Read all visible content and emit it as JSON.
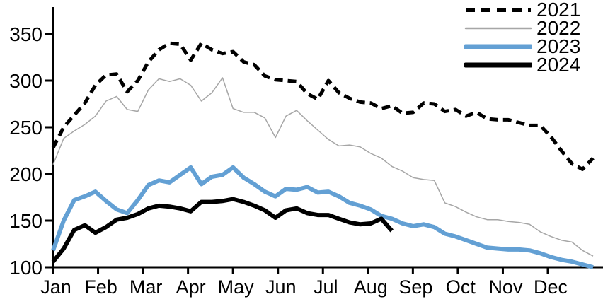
{
  "chart_data": {
    "type": "line",
    "title": "",
    "xlabel": "",
    "ylabel": "",
    "x_description": "weekly observations across one calendar year (index 0-51)",
    "x_tick_labels": [
      "Jan",
      "Feb",
      "Mar",
      "Apr",
      "May",
      "Jun",
      "Jul",
      "Aug",
      "Sep",
      "Oct",
      "Nov",
      "Dec"
    ],
    "y_ticks": [
      100,
      150,
      200,
      250,
      300,
      350
    ],
    "ylim": [
      100,
      380
    ],
    "grid": false,
    "legend_position": "top-right",
    "axis_color": "#000000",
    "series": [
      {
        "name": "2021",
        "style": "dashed",
        "color": "#000000",
        "width": 5,
        "values": [
          228,
          250,
          263,
          276,
          295,
          306,
          307,
          288,
          300,
          320,
          333,
          340,
          339,
          322,
          340,
          333,
          329,
          331,
          320,
          317,
          305,
          301,
          300,
          299,
          286,
          280,
          300,
          287,
          281,
          277,
          276,
          270,
          273,
          265,
          266,
          276,
          275,
          267,
          269,
          262,
          266,
          259,
          258,
          258,
          255,
          252,
          252,
          240,
          225,
          211,
          205,
          217
        ]
      },
      {
        "name": "2022",
        "style": "solid",
        "color": "#A6A6A6",
        "width": 1.5,
        "values": [
          210,
          238,
          246,
          253,
          262,
          278,
          283,
          269,
          267,
          290,
          302,
          299,
          302,
          295,
          278,
          287,
          303,
          270,
          266,
          266,
          260,
          239,
          262,
          268,
          257,
          247,
          237,
          230,
          231,
          229,
          222,
          217,
          208,
          203,
          196,
          194,
          193,
          169,
          165,
          159,
          154,
          151,
          151,
          149,
          148,
          146,
          138,
          133,
          129,
          127,
          118,
          112
        ]
      },
      {
        "name": "2023",
        "style": "solid",
        "color": "#63A0D4",
        "width": 6,
        "values": [
          118,
          150,
          172,
          176,
          181,
          171,
          162,
          158,
          172,
          188,
          193,
          191,
          199,
          207,
          189,
          197,
          199,
          207,
          196,
          189,
          181,
          176,
          184,
          183,
          186,
          180,
          181,
          176,
          169,
          166,
          162,
          155,
          152,
          147,
          144,
          146,
          143,
          136,
          133,
          129,
          125,
          121,
          120,
          119,
          119,
          118,
          115,
          111,
          108,
          106,
          103,
          100
        ]
      },
      {
        "name": "2024",
        "style": "solid",
        "color": "#000000",
        "width": 6,
        "values": [
          106,
          120,
          140,
          145,
          137,
          143,
          151,
          153,
          157,
          163,
          166,
          165,
          163,
          160,
          170,
          170,
          171,
          173,
          170,
          166,
          161,
          153,
          161,
          163,
          158,
          156,
          156,
          152,
          148,
          146,
          147,
          152,
          139
        ]
      }
    ]
  },
  "legend": {
    "items": [
      {
        "label": "2021"
      },
      {
        "label": "2022"
      },
      {
        "label": "2023"
      },
      {
        "label": "2024"
      }
    ]
  }
}
